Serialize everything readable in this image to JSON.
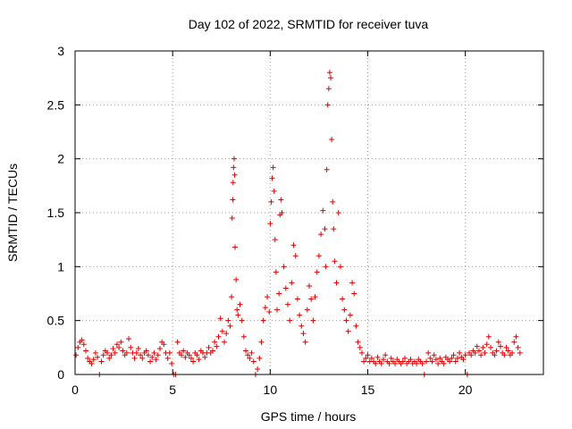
{
  "chart_data": {
    "type": "scatter",
    "title": "Day 102 of 2022, SRMTID for receiver tuva",
    "xlabel": "GPS time / hours",
    "ylabel": "SRMTID / TECUs",
    "xlim": [
      0,
      24
    ],
    "ylim": [
      0,
      3
    ],
    "xticks": [
      0,
      5,
      10,
      15,
      20
    ],
    "xtick_labels": [
      "0",
      "5",
      "10",
      "15",
      "20"
    ],
    "yticks": [
      0,
      0.5,
      1,
      1.5,
      2,
      2.5,
      3
    ],
    "ytick_labels": [
      "0",
      "0.5",
      "1",
      "1.5",
      "2",
      "2.5",
      "3"
    ],
    "grid": true,
    "marker": "+",
    "color": "#e00000",
    "series": [
      {
        "name": "SRMTID",
        "points": [
          [
            0.05,
            0.18
          ],
          [
            0.15,
            0.25
          ],
          [
            0.25,
            0.3
          ],
          [
            0.35,
            0.32
          ],
          [
            0.45,
            0.28
          ],
          [
            0.55,
            0.22
          ],
          [
            0.65,
            0.15
          ],
          [
            0.75,
            0.12
          ],
          [
            0.85,
            0.1
          ],
          [
            0.95,
            0.14
          ],
          [
            1.05,
            0.2
          ],
          [
            1.15,
            0.16
          ],
          [
            1.25,
            0
          ],
          [
            1.35,
            0.12
          ],
          [
            1.45,
            0.18
          ],
          [
            1.55,
            0.22
          ],
          [
            1.65,
            0.2
          ],
          [
            1.75,
            0.15
          ],
          [
            1.85,
            0.18
          ],
          [
            1.95,
            0.24
          ],
          [
            2.05,
            0.2
          ],
          [
            2.15,
            0.28
          ],
          [
            2.25,
            0.25
          ],
          [
            2.35,
            0.3
          ],
          [
            2.45,
            0.22
          ],
          [
            2.55,
            0.18
          ],
          [
            2.65,
            0.2
          ],
          [
            2.75,
            0.33
          ],
          [
            2.85,
            0.25
          ],
          [
            2.95,
            0.2
          ],
          [
            3.05,
            0.15
          ],
          [
            3.15,
            0.2
          ],
          [
            3.25,
            0.24
          ],
          [
            3.35,
            0.18
          ],
          [
            3.45,
            0.15
          ],
          [
            3.55,
            0.2
          ],
          [
            3.65,
            0.22
          ],
          [
            3.75,
            0.18
          ],
          [
            3.85,
            0.12
          ],
          [
            3.95,
            0.16
          ],
          [
            4.05,
            0.2
          ],
          [
            4.15,
            0.14
          ],
          [
            4.25,
            0.18
          ],
          [
            4.35,
            0.24
          ],
          [
            4.45,
            0.3
          ],
          [
            4.55,
            0.28
          ],
          [
            4.65,
            0.2
          ],
          [
            4.75,
            0.15
          ],
          [
            4.85,
            0.2
          ],
          [
            4.95,
            0.1
          ],
          [
            5.05,
            0
          ],
          [
            5.15,
            0
          ],
          [
            5.25,
            0.3
          ],
          [
            5.35,
            0.2
          ],
          [
            5.45,
            0.18
          ],
          [
            5.55,
            0.22
          ],
          [
            5.65,
            0.16
          ],
          [
            5.75,
            0.2
          ],
          [
            5.85,
            0.18
          ],
          [
            5.95,
            0.15
          ],
          [
            6.05,
            0.12
          ],
          [
            6.15,
            0.2
          ],
          [
            6.25,
            0.18
          ],
          [
            6.35,
            0.14
          ],
          [
            6.45,
            0.22
          ],
          [
            6.55,
            0.2
          ],
          [
            6.65,
            0.16
          ],
          [
            6.75,
            0.2
          ],
          [
            6.85,
            0.25
          ],
          [
            6.95,
            0.2
          ],
          [
            7.05,
            0.22
          ],
          [
            7.15,
            0.3
          ],
          [
            7.25,
            0.26
          ],
          [
            7.35,
            0.35
          ],
          [
            7.45,
            0.52
          ],
          [
            7.55,
            0.4
          ],
          [
            7.65,
            0.3
          ],
          [
            7.75,
            0.38
          ],
          [
            7.85,
            0.5
          ],
          [
            7.95,
            0.45
          ],
          [
            8.02,
            0.72
          ],
          [
            8.05,
            1.45
          ],
          [
            8.08,
            1.62
          ],
          [
            8.1,
            1.78
          ],
          [
            8.12,
            1.92
          ],
          [
            8.15,
            2.0
          ],
          [
            8.18,
            1.85
          ],
          [
            8.2,
            1.18
          ],
          [
            8.25,
            0.88
          ],
          [
            8.3,
            0.6
          ],
          [
            8.35,
            0.55
          ],
          [
            8.45,
            0.65
          ],
          [
            8.55,
            0.5
          ],
          [
            8.65,
            0.35
          ],
          [
            8.75,
            0.22
          ],
          [
            8.85,
            0.18
          ],
          [
            8.95,
            0.15
          ],
          [
            9.05,
            0.2
          ],
          [
            9.15,
            0.12
          ],
          [
            9.25,
            0
          ],
          [
            9.35,
            0.05
          ],
          [
            9.45,
            0.15
          ],
          [
            9.55,
            0.3
          ],
          [
            9.65,
            0.5
          ],
          [
            9.75,
            0.62
          ],
          [
            9.85,
            0.72
          ],
          [
            9.95,
            0.58
          ],
          [
            10.0,
            1.4
          ],
          [
            10.05,
            1.6
          ],
          [
            10.1,
            1.82
          ],
          [
            10.15,
            1.92
          ],
          [
            10.2,
            1.7
          ],
          [
            10.25,
            1.25
          ],
          [
            10.3,
            0.95
          ],
          [
            10.35,
            0.6
          ],
          [
            10.45,
            0.75
          ],
          [
            10.5,
            1.48
          ],
          [
            10.55,
            1.62
          ],
          [
            10.6,
            1.5
          ],
          [
            10.7,
            1.0
          ],
          [
            10.8,
            0.8
          ],
          [
            10.9,
            0.65
          ],
          [
            11.0,
            0.5
          ],
          [
            11.1,
            0.85
          ],
          [
            11.2,
            1.2
          ],
          [
            11.3,
            1.1
          ],
          [
            11.4,
            0.7
          ],
          [
            11.5,
            0.55
          ],
          [
            11.6,
            0.45
          ],
          [
            11.7,
            0.38
          ],
          [
            11.8,
            0.3
          ],
          [
            11.9,
            0.6
          ],
          [
            12.0,
            0.82
          ],
          [
            12.1,
            0.7
          ],
          [
            12.2,
            0.5
          ],
          [
            12.3,
            0.72
          ],
          [
            12.4,
            0.95
          ],
          [
            12.5,
            1.1
          ],
          [
            12.6,
            1.3
          ],
          [
            12.7,
            1.52
          ],
          [
            12.8,
            1.35
          ],
          [
            12.85,
            1.0
          ],
          [
            12.9,
            1.9
          ],
          [
            12.95,
            2.5
          ],
          [
            13.0,
            2.65
          ],
          [
            13.05,
            2.8
          ],
          [
            13.1,
            2.75
          ],
          [
            13.15,
            2.18
          ],
          [
            13.2,
            1.6
          ],
          [
            13.25,
            1.35
          ],
          [
            13.3,
            1.05
          ],
          [
            13.4,
            0.85
          ],
          [
            13.5,
            1.5
          ],
          [
            13.6,
            1.0
          ],
          [
            13.7,
            0.7
          ],
          [
            13.8,
            0.6
          ],
          [
            13.9,
            0.5
          ],
          [
            14.0,
            0.4
          ],
          [
            14.1,
            0.55
          ],
          [
            14.2,
            0.85
          ],
          [
            14.3,
            0.75
          ],
          [
            14.4,
            0.45
          ],
          [
            14.5,
            0.3
          ],
          [
            14.6,
            0.25
          ],
          [
            14.7,
            0.2
          ],
          [
            14.8,
            0.12
          ],
          [
            14.9,
            0.15
          ],
          [
            15.0,
            0.18
          ],
          [
            15.1,
            0.12
          ],
          [
            15.2,
            0.15
          ],
          [
            15.3,
            0.12
          ],
          [
            15.4,
            0.1
          ],
          [
            15.5,
            0.16
          ],
          [
            15.6,
            0.12
          ],
          [
            15.7,
            0.1
          ],
          [
            15.8,
            0.14
          ],
          [
            15.9,
            0.18
          ],
          [
            16.0,
            0.12
          ],
          [
            16.1,
            0.1
          ],
          [
            16.2,
            0.15
          ],
          [
            16.3,
            0.12
          ],
          [
            16.4,
            0.1
          ],
          [
            16.5,
            0.14
          ],
          [
            16.6,
            0.12
          ],
          [
            16.7,
            0.1
          ],
          [
            16.8,
            0.12
          ],
          [
            16.9,
            0.15
          ],
          [
            17.0,
            0.1
          ],
          [
            17.1,
            0.12
          ],
          [
            17.2,
            0.14
          ],
          [
            17.3,
            0.1
          ],
          [
            17.4,
            0.12
          ],
          [
            17.5,
            0.1
          ],
          [
            17.6,
            0.14
          ],
          [
            17.7,
            0.12
          ],
          [
            17.8,
            0.1
          ],
          [
            17.9,
            0
          ],
          [
            18.0,
            0.12
          ],
          [
            18.1,
            0.2
          ],
          [
            18.2,
            0.15
          ],
          [
            18.3,
            0.12
          ],
          [
            18.4,
            0.18
          ],
          [
            18.5,
            0.14
          ],
          [
            18.6,
            0.1
          ],
          [
            18.7,
            0.15
          ],
          [
            18.8,
            0.12
          ],
          [
            18.9,
            0.1
          ],
          [
            19.0,
            0.16
          ],
          [
            19.1,
            0.14
          ],
          [
            19.2,
            0.12
          ],
          [
            19.3,
            0.15
          ],
          [
            19.4,
            0.18
          ],
          [
            19.5,
            0.12
          ],
          [
            19.6,
            0.15
          ],
          [
            19.7,
            0.2
          ],
          [
            19.8,
            0.16
          ],
          [
            19.9,
            0.14
          ],
          [
            20.0,
            0.18
          ],
          [
            20.1,
            0
          ],
          [
            20.2,
            0.2
          ],
          [
            20.3,
            0.18
          ],
          [
            20.4,
            0.22
          ],
          [
            20.5,
            0.2
          ],
          [
            20.6,
            0.26
          ],
          [
            20.7,
            0.22
          ],
          [
            20.8,
            0.18
          ],
          [
            20.9,
            0.25
          ],
          [
            21.0,
            0.2
          ],
          [
            21.1,
            0.28
          ],
          [
            21.2,
            0.35
          ],
          [
            21.3,
            0.25
          ],
          [
            21.4,
            0.2
          ],
          [
            21.5,
            0.18
          ],
          [
            21.6,
            0.22
          ],
          [
            21.7,
            0.3
          ],
          [
            21.8,
            0.26
          ],
          [
            21.9,
            0.2
          ],
          [
            22.0,
            0.18
          ],
          [
            22.1,
            0.25
          ],
          [
            22.2,
            0.22
          ],
          [
            22.3,
            0.18
          ],
          [
            22.4,
            0.2
          ],
          [
            22.5,
            0.3
          ],
          [
            22.6,
            0.35
          ],
          [
            22.7,
            0.25
          ],
          [
            22.8,
            0.2
          ]
        ]
      }
    ]
  }
}
